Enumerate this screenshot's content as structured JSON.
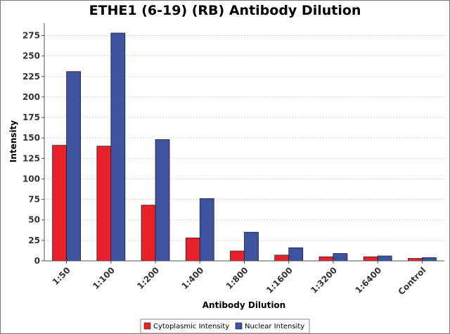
{
  "chart_data": {
    "type": "bar",
    "title": "ETHE1 (6-19) (RB) Antibody Dilution",
    "xlabel": "Antibody Dilution",
    "ylabel": "Intensity",
    "ylim": [
      0,
      290
    ],
    "yticks": [
      0,
      25,
      50,
      75,
      100,
      125,
      150,
      175,
      200,
      225,
      250,
      275
    ],
    "grid": true,
    "legend_position": "bottom",
    "categories": [
      "1:50",
      "1:100",
      "1:200",
      "1:400",
      "1:800",
      "1:1600",
      "1:3200",
      "1:6400",
      "Control"
    ],
    "series": [
      {
        "name": "Cytoplasmic Intensity",
        "color": "#e8202a",
        "values": [
          141,
          140,
          68,
          28,
          12,
          7,
          5,
          5,
          3
        ]
      },
      {
        "name": "Nuclear Intensity",
        "color": "#3d52a1",
        "values": [
          231,
          278,
          148,
          76,
          35,
          16,
          9,
          6,
          4
        ]
      }
    ]
  }
}
